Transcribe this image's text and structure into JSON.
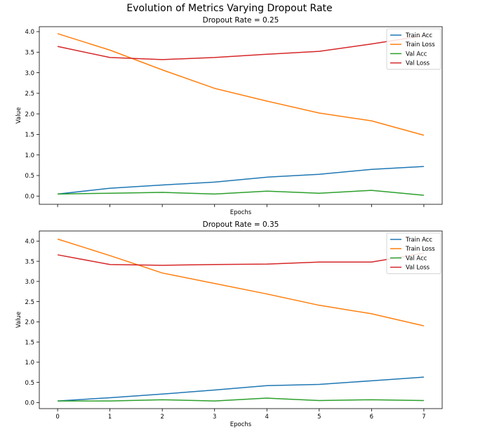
{
  "figure": {
    "suptitle": "Evolution of Metrics Varying Dropout Rate"
  },
  "colors": {
    "Train Acc": "#1f77b4",
    "Train Loss": "#ff7f0e",
    "Val Acc": "#2ca02c",
    "Val Loss": "#d62728"
  },
  "chart_data": [
    {
      "type": "line",
      "title": "Dropout Rate = 0.25",
      "xlabel": "Epochs",
      "ylabel": "Value",
      "x": [
        0,
        1,
        2,
        3,
        4,
        5,
        6,
        7
      ],
      "xticks": [
        "0",
        "1",
        "2",
        "3",
        "4",
        "5",
        "6",
        "7"
      ],
      "xticklabels_visible": false,
      "xlim": [
        -0.35,
        7.35
      ],
      "ylim": [
        -0.2,
        4.12
      ],
      "yticks": [
        "0.0",
        "0.5",
        "1.0",
        "1.5",
        "2.0",
        "2.5",
        "3.0",
        "3.5",
        "4.0"
      ],
      "grid": false,
      "legend_position": "upper right",
      "series": [
        {
          "name": "Train Acc",
          "values": [
            0.05,
            0.19,
            0.27,
            0.34,
            0.46,
            0.53,
            0.65,
            0.72
          ]
        },
        {
          "name": "Train Loss",
          "values": [
            3.95,
            3.55,
            3.07,
            2.62,
            2.31,
            2.02,
            1.83,
            1.48
          ]
        },
        {
          "name": "Val Acc",
          "values": [
            0.05,
            0.07,
            0.09,
            0.05,
            0.12,
            0.07,
            0.14,
            0.02
          ]
        },
        {
          "name": "Val Loss",
          "values": [
            3.64,
            3.37,
            3.32,
            3.37,
            3.45,
            3.52,
            3.7,
            3.9
          ]
        }
      ]
    },
    {
      "type": "line",
      "title": "Dropout Rate = 0.35",
      "xlabel": "Epochs",
      "ylabel": "Value",
      "x": [
        0,
        1,
        2,
        3,
        4,
        5,
        6,
        7
      ],
      "xticks": [
        "0",
        "1",
        "2",
        "3",
        "4",
        "5",
        "6",
        "7"
      ],
      "xticklabels_visible": true,
      "xlim": [
        -0.35,
        7.35
      ],
      "ylim": [
        -0.15,
        4.25
      ],
      "yticks": [
        "0.0",
        "0.5",
        "1.0",
        "1.5",
        "2.0",
        "2.5",
        "3.0",
        "3.5",
        "4.0"
      ],
      "grid": false,
      "legend_position": "upper right",
      "series": [
        {
          "name": "Train Acc",
          "values": [
            0.04,
            0.12,
            0.21,
            0.31,
            0.42,
            0.45,
            0.54,
            0.63
          ]
        },
        {
          "name": "Train Loss",
          "values": [
            4.05,
            3.64,
            3.21,
            2.95,
            2.69,
            2.41,
            2.2,
            1.9
          ]
        },
        {
          "name": "Val Acc",
          "values": [
            0.04,
            0.04,
            0.07,
            0.04,
            0.11,
            0.05,
            0.07,
            0.05
          ]
        },
        {
          "name": "Val Loss",
          "values": [
            3.66,
            3.42,
            3.4,
            3.42,
            3.43,
            3.48,
            3.48,
            3.7
          ]
        }
      ]
    }
  ]
}
